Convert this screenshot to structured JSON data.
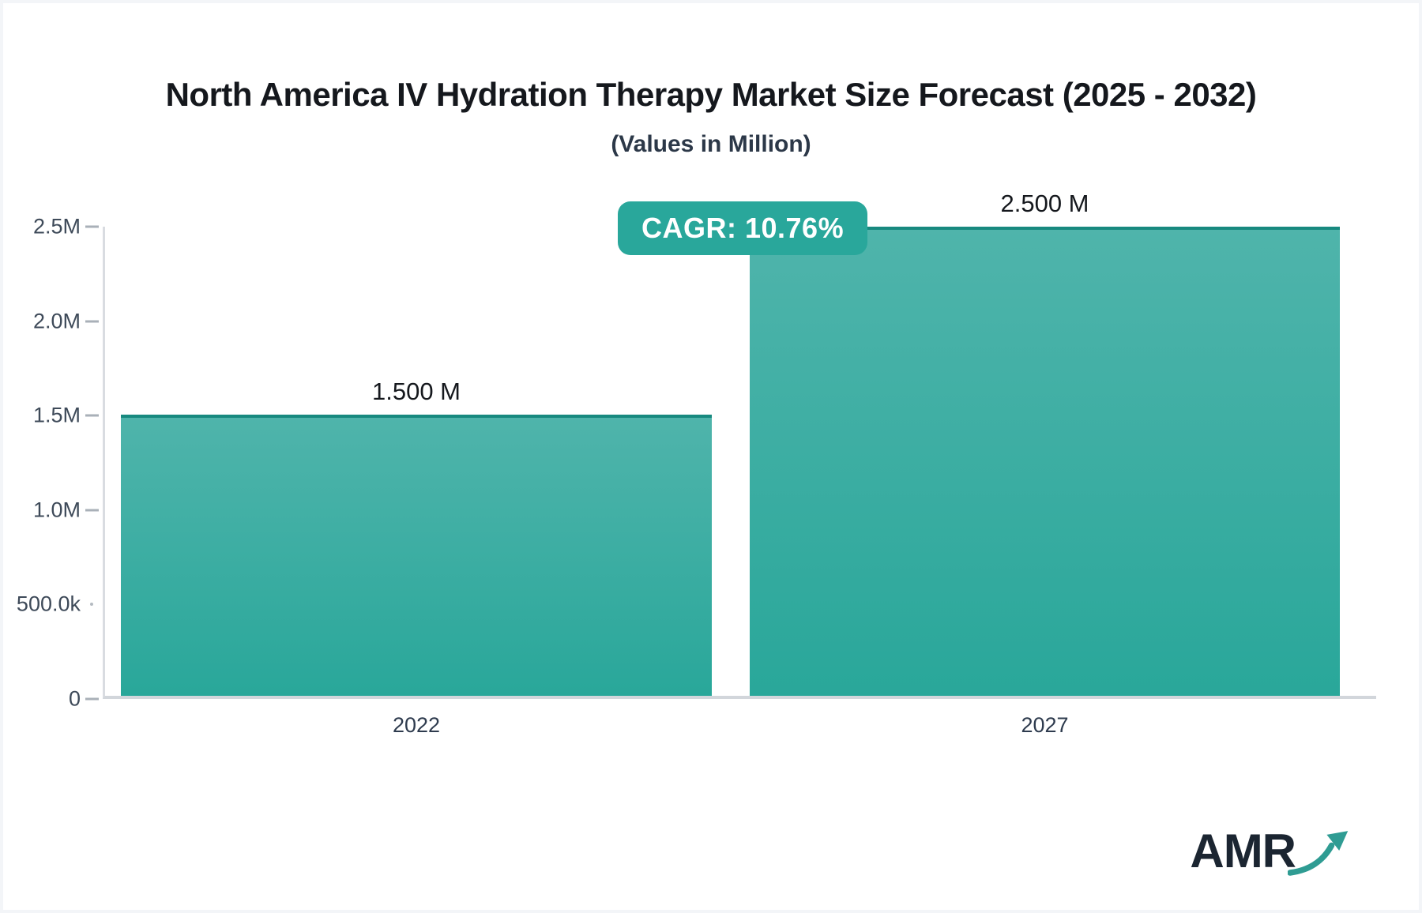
{
  "header": {
    "title": "North America IV Hydration Therapy Market Size Forecast (2025 - 2032)",
    "subtitle": "(Values in Million)"
  },
  "cagr": {
    "label": "CAGR: 10.76%",
    "badge_color": "#29a79b"
  },
  "logo": {
    "text": "AMR",
    "arrow_color": "#2f9c93",
    "text_color": "#1b2531"
  },
  "colors": {
    "bar_top": "#4fb4ab",
    "bar_bottom": "#29a79a",
    "bar_top_border": "#17897f",
    "axis_line": "#d2d6db"
  },
  "chart_data": {
    "type": "bar",
    "title": "North America IV Hydration Therapy Market Size Forecast (2025 - 2032)",
    "subtitle": "(Values in Million)",
    "unit": "Million",
    "categories": [
      "2022",
      "2027"
    ],
    "values": [
      1500000,
      2500000
    ],
    "bar_value_labels": [
      "1.500 M",
      "2.500 M"
    ],
    "annotation": "CAGR: 10.76%",
    "ylim": [
      0,
      2500000
    ],
    "y_ticks": [
      {
        "value": 0,
        "label": "0"
      },
      {
        "value": 500000,
        "label": "500.0k"
      },
      {
        "value": 1000000,
        "label": "1.0M"
      },
      {
        "value": 1500000,
        "label": "1.5M"
      },
      {
        "value": 2000000,
        "label": "2.0M"
      },
      {
        "value": 2500000,
        "label": "2.5M"
      }
    ],
    "grid": false,
    "legend": false
  }
}
